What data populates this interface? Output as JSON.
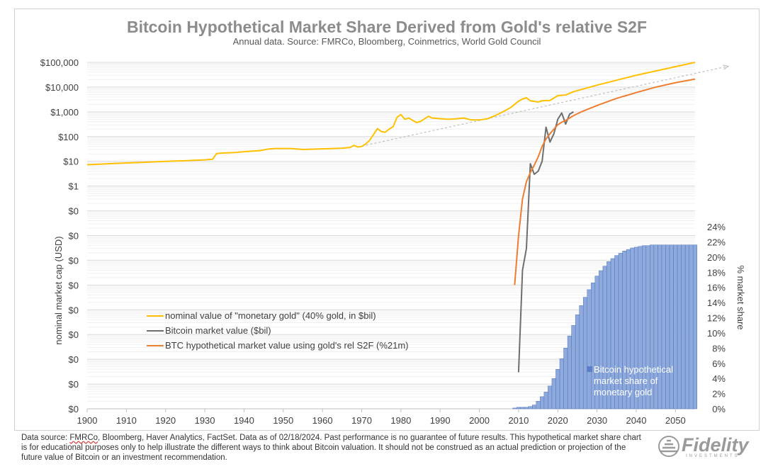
{
  "chart_data": {
    "type": "line",
    "title": "Bitcoin Hypothetical Market Share Derived from Gold's relative S2F",
    "subtitle": "Annual data.  Source: FMRCo, Bloomberg, Coinmetrics, World Gold Council",
    "ylabel": "nominal market cap (USD)",
    "y2label": "% market share",
    "y_scale": "log",
    "xlim": [
      1900,
      2055
    ],
    "x_ticks": [
      1900,
      1910,
      1920,
      1930,
      1940,
      1950,
      1960,
      1970,
      1980,
      1990,
      2000,
      2010,
      2020,
      2030,
      2040,
      2050
    ],
    "x_tick_labels": [
      "1900",
      "1910",
      "1920",
      "1930",
      "1940",
      "1950",
      "1960",
      "1970",
      "1980",
      "1990",
      "2000",
      "2010",
      "2020",
      "2030",
      "2040",
      "2050"
    ],
    "y_ticks": [
      1e-09,
      1e-08,
      1e-07,
      1e-06,
      1e-05,
      0.0001,
      0.001,
      0.01,
      0.1,
      1,
      10,
      100,
      1000,
      10000,
      100000
    ],
    "y_tick_labels": [
      "$0",
      "$0",
      "$0",
      "$0",
      "$0",
      "$0",
      "$0",
      "$0",
      "$0",
      "$1",
      "$10",
      "$100",
      "$1,000",
      "$10,000",
      "$100,000"
    ],
    "y2_ticks": [
      0,
      2,
      4,
      6,
      8,
      10,
      12,
      14,
      16,
      18,
      20,
      22,
      24
    ],
    "y2_tick_labels": [
      "0%",
      "2%",
      "4%",
      "6%",
      "8%",
      "10%",
      "12%",
      "14%",
      "16%",
      "18%",
      "20%",
      "22%",
      "24%"
    ],
    "y2lim": [
      0,
      24
    ],
    "grid": true,
    "legend_position": "bottom-left",
    "series": [
      {
        "name": "nominal value of \"monetary gold\" (40% gold, in $bil)",
        "color": "#FFC000",
        "type": "line",
        "x": [
          1900,
          1905,
          1910,
          1915,
          1920,
          1925,
          1930,
          1932,
          1933,
          1934,
          1938,
          1940,
          1944,
          1946,
          1948,
          1950,
          1952,
          1955,
          1960,
          1965,
          1967,
          1968,
          1969,
          1970,
          1971,
          1972,
          1973,
          1974,
          1975,
          1976,
          1977,
          1978,
          1979,
          1980,
          1981,
          1982,
          1983,
          1984,
          1985,
          1986,
          1987,
          1988,
          1990,
          1992,
          1994,
          1996,
          1998,
          2000,
          2002,
          2004,
          2006,
          2008,
          2010,
          2011,
          2012,
          2013,
          2015,
          2016,
          2018,
          2019,
          2020,
          2022,
          2024,
          2030,
          2040,
          2055
        ],
        "values": [
          7.3,
          7.9,
          8.6,
          9.2,
          10,
          10.6,
          11.5,
          12.2,
          20.5,
          21.5,
          23,
          24.5,
          27,
          31,
          33,
          33,
          33,
          30,
          32,
          34,
          36,
          44,
          38,
          40,
          50,
          70,
          120,
          210,
          160,
          150,
          200,
          250,
          600,
          780,
          500,
          560,
          450,
          370,
          410,
          520,
          660,
          560,
          530,
          500,
          520,
          560,
          470,
          470,
          520,
          700,
          1000,
          1500,
          2700,
          3300,
          3700,
          2800,
          2500,
          2800,
          2900,
          3600,
          4500,
          4800,
          6500,
          12000,
          30000,
          100000
        ]
      },
      {
        "name": "Bitcoin market value ($bil)",
        "color": "#6E6E6E",
        "type": "line",
        "x": [
          2010,
          2011,
          2012,
          2013,
          2014,
          2015,
          2016,
          2017,
          2018,
          2019,
          2020,
          2021,
          2022,
          2023,
          2024
        ],
        "values": [
          3e-08,
          0.0004,
          0.003,
          8,
          3,
          4,
          10,
          240,
          60,
          130,
          500,
          900,
          320,
          800,
          1000
        ]
      },
      {
        "name": "BTC hypothetical market value using gold's rel S2F (%21m)",
        "color": "#ED7D31",
        "type": "line",
        "x": [
          2009,
          2010,
          2011,
          2012,
          2013,
          2014,
          2015,
          2016,
          2017,
          2018,
          2019,
          2020,
          2021,
          2022,
          2024,
          2026,
          2030,
          2035,
          2040,
          2045,
          2050,
          2055
        ],
        "values": [
          0.0001,
          0.01,
          0.3,
          1.5,
          3.5,
          7,
          15,
          40,
          80,
          130,
          200,
          300,
          380,
          450,
          700,
          1000,
          1800,
          3500,
          6000,
          10000,
          15000,
          21000
        ]
      },
      {
        "name": "Bitcoin hypothetical market share of monetary gold",
        "color": "#8EA9DB",
        "type": "bar",
        "axis": "y2",
        "x": [
          2009,
          2010,
          2011,
          2012,
          2013,
          2014,
          2015,
          2016,
          2017,
          2018,
          2019,
          2020,
          2021,
          2022,
          2023,
          2024,
          2025,
          2026,
          2027,
          2028,
          2029,
          2030,
          2031,
          2032,
          2033,
          2034,
          2035,
          2036,
          2037,
          2038,
          2039,
          2040,
          2041,
          2042,
          2043,
          2044,
          2045,
          2046,
          2047,
          2048,
          2049,
          2050,
          2051,
          2052,
          2053,
          2054,
          2055
        ],
        "values": [
          0.1,
          0.2,
          0.2,
          0.2,
          0.3,
          0.5,
          1.0,
          1.6,
          2.2,
          3.0,
          4.0,
          5.2,
          6.6,
          8.0,
          9.6,
          11.0,
          12.4,
          13.6,
          14.7,
          15.7,
          16.6,
          17.5,
          18.2,
          18.8,
          19.4,
          19.8,
          20.2,
          20.5,
          20.8,
          21.0,
          21.2,
          21.3,
          21.4,
          21.5,
          21.5,
          21.6,
          21.6,
          21.6,
          21.6,
          21.6,
          21.6,
          21.6,
          21.6,
          21.6,
          21.6,
          21.6,
          21.6
        ]
      }
    ],
    "annotations": [
      {
        "type": "dashed-trend-arrow",
        "color": "#BFBFBF",
        "x": [
          1969,
          2060
        ],
        "values": [
          38,
          70000
        ]
      }
    ]
  },
  "legend": {
    "gold": "nominal value of \"monetary gold\" (40% gold, in $bil)",
    "btc": "Bitcoin market value ($bil)",
    "s2f": "BTC hypothetical market value using gold's rel S2F (%21m)",
    "share_lines": [
      "Bitcoin hypothetical",
      "market share of",
      "monetary gold"
    ]
  },
  "footnote": {
    "prefix": "Data source: ",
    "underlined": "FMRCo",
    "rest": ", Bloomberg, Haver Analytics, FactSet. Data as of 02/18/2024. Past performance is no guarantee of future results. This hypothetical market share chart is for educational purposes only to help illustrate the different ways to think about Bitcoin valuation.  It should not be construed as an actual prediction or projection of the future value of Bitcoin or an investment recommendation."
  },
  "logo": {
    "text": "Fidelity",
    "sub": "INVESTMENTS"
  }
}
